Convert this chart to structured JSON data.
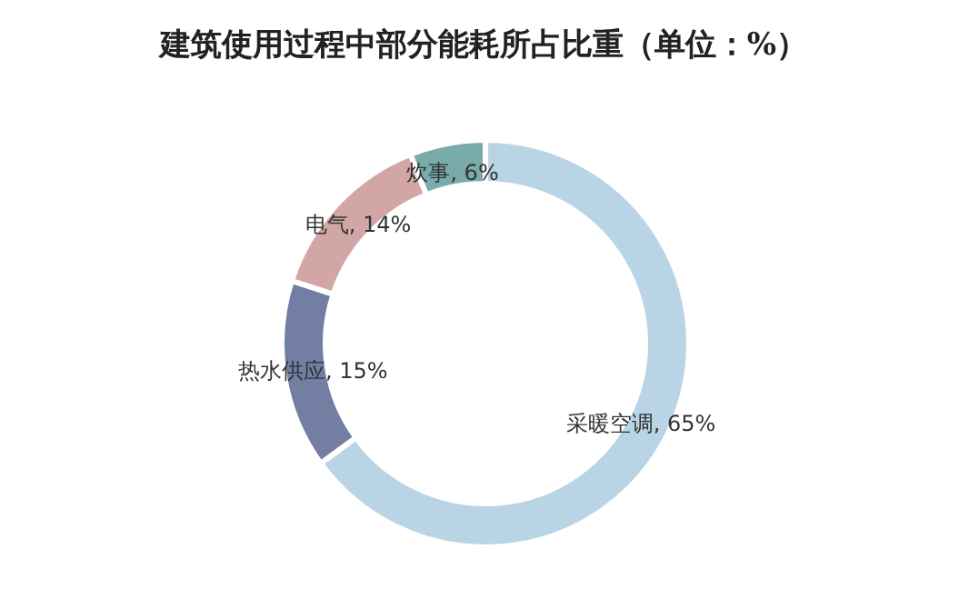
{
  "chart_data": {
    "type": "donut",
    "title": "建筑使用过程中部分能耗所占比重（单位：%）",
    "categories": [
      "采暖空调",
      "热水供应",
      "电气",
      "炊事"
    ],
    "values": [
      65,
      15,
      14,
      6
    ],
    "colors": [
      "#b9d5e5",
      "#727fa3",
      "#d3a6a6",
      "#7aabab"
    ],
    "value_labels": [
      ", 65%",
      ", 15%",
      ", 14%",
      ", 6%"
    ],
    "legend": false
  }
}
